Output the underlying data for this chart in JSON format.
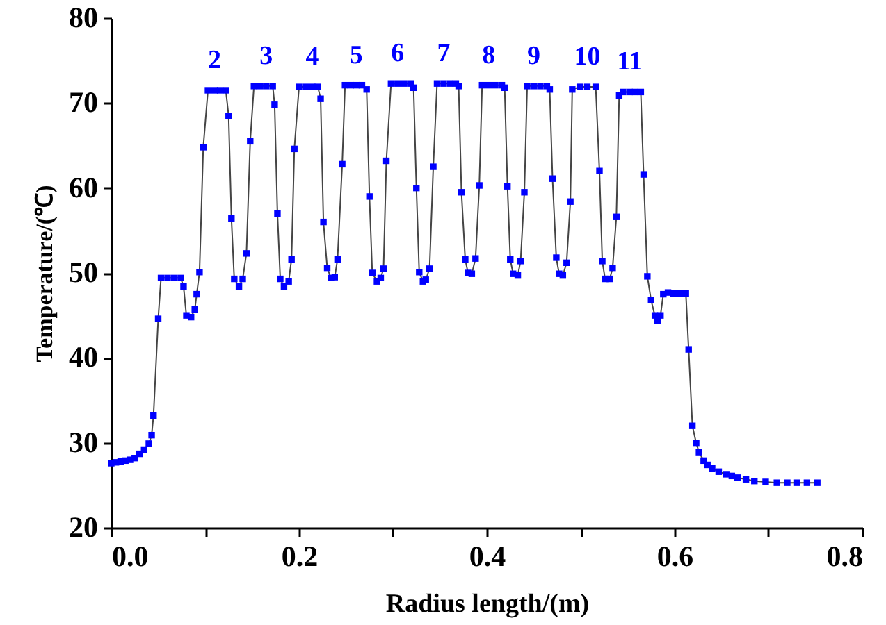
{
  "chart_data": {
    "type": "line",
    "xlabel": "Radius length/(m)",
    "ylabel": "Temperature/(℃)",
    "xlim": [
      0,
      0.8
    ],
    "ylim": [
      20,
      80
    ],
    "xticks": [
      {
        "value": 0,
        "label": "0.0"
      },
      {
        "value": 0.1,
        "label": null
      },
      {
        "value": 0.2,
        "label": "0.2"
      },
      {
        "value": 0.3,
        "label": null
      },
      {
        "value": 0.4,
        "label": "0.4"
      },
      {
        "value": 0.5,
        "label": null
      },
      {
        "value": 0.6,
        "label": "0.6"
      },
      {
        "value": 0.7,
        "label": null
      },
      {
        "value": 0.8,
        "label": "0.8"
      }
    ],
    "yticks": [
      20,
      30,
      40,
      50,
      60,
      70,
      80
    ],
    "grid": false,
    "marker": "square",
    "line_style": "solid",
    "series": [
      {
        "color": "#0000ff",
        "x": [
          0,
          0.005,
          0.01,
          0.015,
          0.02,
          0.025,
          0.03,
          0.035,
          0.04,
          0.043,
          0.045,
          0.05,
          0.053,
          0.06,
          0.067,
          0.074,
          0.077,
          0.08,
          0.085,
          0.089,
          0.091,
          0.094,
          0.098,
          0.103,
          0.11,
          0.116,
          0.122,
          0.125,
          0.128,
          0.131,
          0.136,
          0.14,
          0.144,
          0.148,
          0.152,
          0.158,
          0.165,
          0.172,
          0.174,
          0.177,
          0.18,
          0.184,
          0.189,
          0.192,
          0.195,
          0.2,
          0.207,
          0.214,
          0.22,
          0.223,
          0.226,
          0.23,
          0.234,
          0.238,
          0.241,
          0.246,
          0.249,
          0.255,
          0.261,
          0.267,
          0.272,
          0.275,
          0.278,
          0.283,
          0.287,
          0.29,
          0.293,
          0.298,
          0.305,
          0.312,
          0.319,
          0.322,
          0.325,
          0.328,
          0.332,
          0.335,
          0.339,
          0.343,
          0.347,
          0.354,
          0.361,
          0.367,
          0.37,
          0.373,
          0.377,
          0.38,
          0.384,
          0.388,
          0.392,
          0.395,
          0.402,
          0.409,
          0.416,
          0.419,
          0.422,
          0.425,
          0.428,
          0.433,
          0.436,
          0.44,
          0.443,
          0.45,
          0.457,
          0.464,
          0.467,
          0.47,
          0.474,
          0.477,
          0.481,
          0.485,
          0.489,
          0.491,
          0.499,
          0.507,
          0.516,
          0.52,
          0.523,
          0.526,
          0.531,
          0.534,
          0.538,
          0.541,
          0.545,
          0.552,
          0.558,
          0.564,
          0.567,
          0.571,
          0.575,
          0.579,
          0.582,
          0.585,
          0.588,
          0.593,
          0.599,
          0.606,
          0.612,
          0.615,
          0.619,
          0.623,
          0.626,
          0.631,
          0.635,
          0.64,
          0.647,
          0.655,
          0.661,
          0.667,
          0.676,
          0.685,
          0.697,
          0.709,
          0.72,
          0.73,
          0.741,
          0.752
        ],
        "values": [
          27.6,
          27.7,
          27.8,
          27.9,
          28,
          28.2,
          28.7,
          29.2,
          29.9,
          30.9,
          33.2,
          44.6,
          49.4,
          49.4,
          49.4,
          49.4,
          48.4,
          45,
          44.8,
          45.7,
          47.5,
          50.1,
          64.8,
          71.5,
          71.5,
          71.5,
          71.5,
          68.5,
          56.4,
          49.3,
          48.4,
          49.3,
          52.3,
          65.5,
          72,
          72,
          72,
          72,
          69.8,
          57,
          49.3,
          48.4,
          49,
          51.6,
          64.6,
          71.9,
          71.9,
          71.9,
          71.9,
          70.5,
          56,
          50.6,
          49.4,
          49.5,
          51.6,
          62.8,
          72.1,
          72.1,
          72.1,
          72.1,
          71.6,
          59,
          50,
          49,
          49.4,
          50.5,
          63.2,
          72.3,
          72.3,
          72.3,
          72.3,
          71.8,
          60,
          50.1,
          49,
          49.2,
          50.5,
          62.5,
          72.3,
          72.3,
          72.3,
          72.3,
          72,
          59.5,
          51.6,
          50,
          49.9,
          51.7,
          60.3,
          72.1,
          72.1,
          72.1,
          72.1,
          71.8,
          60.2,
          51.6,
          49.9,
          49.7,
          51.4,
          59.5,
          72,
          72,
          72,
          72,
          71.6,
          61.1,
          51.8,
          49.9,
          49.7,
          51.2,
          58.4,
          71.6,
          71.9,
          71.9,
          71.9,
          62,
          51.4,
          49.3,
          49.3,
          50.6,
          56.6,
          70.9,
          71.3,
          71.3,
          71.3,
          71.3,
          61.6,
          49.6,
          46.8,
          45,
          44.4,
          45,
          47.5,
          47.7,
          47.6,
          47.6,
          47.6,
          41,
          32,
          30,
          28.9,
          27.9,
          27.4,
          27,
          26.6,
          26.3,
          26.1,
          25.9,
          25.7,
          25.5,
          25.4,
          25.3,
          25.3,
          25.3,
          25.3,
          25.3
        ]
      }
    ],
    "annotations": [
      {
        "text": "2",
        "x": 0.11,
        "y": 71.5
      },
      {
        "text": "3",
        "x": 0.165,
        "y": 72
      },
      {
        "text": "4",
        "x": 0.214,
        "y": 71.9
      },
      {
        "text": "5",
        "x": 0.261,
        "y": 72.1
      },
      {
        "text": "6",
        "x": 0.305,
        "y": 72.3
      },
      {
        "text": "7",
        "x": 0.354,
        "y": 72.3
      },
      {
        "text": "8",
        "x": 0.402,
        "y": 72.1
      },
      {
        "text": "9",
        "x": 0.45,
        "y": 72
      },
      {
        "text": "10",
        "x": 0.507,
        "y": 71.9
      },
      {
        "text": "11",
        "x": 0.552,
        "y": 71.3
      }
    ]
  }
}
